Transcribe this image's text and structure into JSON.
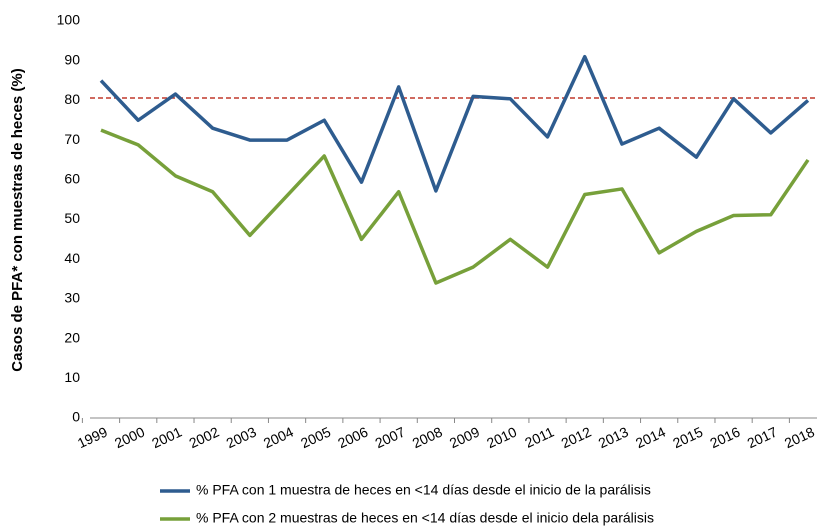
{
  "chart_data": {
    "type": "line",
    "y_label": "Casos de PFA* con muestras de heces (%)",
    "categories": [
      "1999",
      "2000",
      "2001",
      "2002",
      "2003",
      "2004",
      "2005",
      "2006",
      "2007",
      "2008",
      "2009",
      "2010",
      "2011",
      "2012",
      "2013",
      "2014",
      "2015",
      "2016",
      "2017",
      "2018"
    ],
    "series": [
      {
        "name": "% PFA con 1 muestra de heces en <14 días desde el inicio de la parálisis",
        "color": "#2e5c8f",
        "values": [
          85,
          75,
          81.6,
          73,
          70,
          70,
          75,
          59.4,
          83.4,
          57.2,
          81,
          80.4,
          70.8,
          91,
          69,
          73,
          65.7,
          80.4,
          71.8,
          80
        ]
      },
      {
        "name": "% PFA con 2 muestras de heces en <14 días desde el inicio dela parálisis",
        "color": "#77a03a",
        "values": [
          72.5,
          68.8,
          61,
          57,
          46,
          56,
          66,
          45,
          57,
          34,
          38,
          45,
          38,
          56.3,
          57.7,
          41.6,
          47,
          51,
          51.2,
          65
        ]
      }
    ],
    "reference_line": {
      "value": 80.6,
      "color": "#c0392b"
    },
    "ylim": [
      0,
      100
    ],
    "yticks": [
      0,
      10,
      20,
      30,
      40,
      50,
      60,
      70,
      80,
      90,
      100
    ]
  }
}
